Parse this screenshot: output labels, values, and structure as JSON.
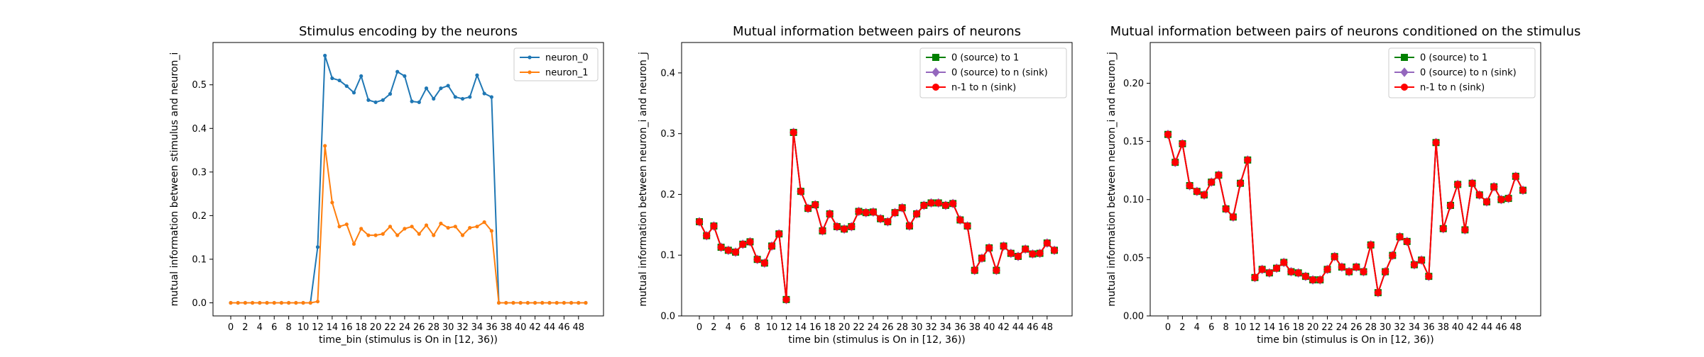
{
  "chart_data": [
    {
      "type": "line",
      "title": "Stimulus encoding by the neurons",
      "xlabel": "time_bin (stimulus is On in [12, 36))",
      "ylabel": "mutual information between stimulus and neuron_i",
      "xlim": [
        -2.45,
        51.45
      ],
      "ylim": [
        -0.03,
        0.597
      ],
      "xticks": [
        0,
        2,
        4,
        6,
        8,
        10,
        12,
        14,
        16,
        18,
        20,
        22,
        24,
        26,
        28,
        30,
        32,
        34,
        36,
        38,
        40,
        42,
        44,
        46,
        48
      ],
      "xtick_labels": [
        "0",
        "2",
        "4",
        "6",
        "8",
        "10",
        "12",
        "14",
        "16",
        "18",
        "20",
        "22",
        "24",
        "26",
        "28",
        "30",
        "32",
        "34",
        "36",
        "38",
        "40",
        "42",
        "44",
        "46",
        "48"
      ],
      "yticks": [
        0.0,
        0.1,
        0.2,
        0.3,
        0.4,
        0.5
      ],
      "ytick_labels": [
        "0.0",
        "0.1",
        "0.2",
        "0.3",
        "0.4",
        "0.5"
      ],
      "legend_position": "upper-right",
      "x": [
        0,
        1,
        2,
        3,
        4,
        5,
        6,
        7,
        8,
        9,
        10,
        11,
        12,
        13,
        14,
        15,
        16,
        17,
        18,
        19,
        20,
        21,
        22,
        23,
        24,
        25,
        26,
        27,
        28,
        29,
        30,
        31,
        32,
        33,
        34,
        35,
        36,
        37,
        38,
        39,
        40,
        41,
        42,
        43,
        44,
        45,
        46,
        47,
        48,
        49
      ],
      "series": [
        {
          "name": "neuron_0",
          "color": "#1f77b4",
          "marker": "circle",
          "values": [
            0,
            0,
            0,
            0,
            0,
            0,
            0,
            0,
            0,
            0,
            0,
            0,
            0.128,
            0.567,
            0.515,
            0.51,
            0.497,
            0.482,
            0.52,
            0.465,
            0.46,
            0.465,
            0.479,
            0.53,
            0.52,
            0.462,
            0.46,
            0.492,
            0.468,
            0.492,
            0.498,
            0.472,
            0.468,
            0.472,
            0.522,
            0.48,
            0.472,
            0,
            0,
            0,
            0,
            0,
            0,
            0,
            0,
            0,
            0,
            0,
            0,
            0
          ]
        },
        {
          "name": "neuron_1",
          "color": "#ff7f0e",
          "marker": "circle",
          "values": [
            0,
            0,
            0,
            0,
            0,
            0,
            0,
            0,
            0,
            0,
            0,
            0,
            0.003,
            0.36,
            0.23,
            0.175,
            0.18,
            0.135,
            0.17,
            0.155,
            0.155,
            0.158,
            0.175,
            0.155,
            0.17,
            0.175,
            0.158,
            0.178,
            0.155,
            0.182,
            0.172,
            0.175,
            0.155,
            0.172,
            0.175,
            0.185,
            0.165,
            0,
            0,
            0,
            0,
            0,
            0,
            0,
            0,
            0,
            0,
            0,
            0,
            0
          ]
        }
      ]
    },
    {
      "type": "line",
      "title": "Mutual information between pairs of neurons",
      "xlabel": "time bin (stimulus is On in [12, 36))",
      "ylabel": "mutual information between neuron_i and neuron_j",
      "xlim": [
        -2.45,
        51.45
      ],
      "ylim": [
        0.0,
        0.45
      ],
      "xticks": [
        0,
        2,
        4,
        6,
        8,
        10,
        12,
        14,
        16,
        18,
        20,
        22,
        24,
        26,
        28,
        30,
        32,
        34,
        36,
        38,
        40,
        42,
        44,
        46,
        48
      ],
      "xtick_labels": [
        "0",
        "2",
        "4",
        "6",
        "8",
        "10",
        "12",
        "14",
        "16",
        "18",
        "20",
        "22",
        "24",
        "26",
        "28",
        "30",
        "32",
        "34",
        "36",
        "38",
        "40",
        "42",
        "44",
        "46",
        "48"
      ],
      "yticks": [
        0.0,
        0.1,
        0.2,
        0.3,
        0.4
      ],
      "ytick_labels": [
        "0.0",
        "0.1",
        "0.2",
        "0.3",
        "0.4"
      ],
      "legend_position": "upper-right",
      "x": [
        0,
        1,
        2,
        3,
        4,
        5,
        6,
        7,
        8,
        9,
        10,
        11,
        12,
        13,
        14,
        15,
        16,
        17,
        18,
        19,
        20,
        21,
        22,
        23,
        24,
        25,
        26,
        27,
        28,
        29,
        30,
        31,
        32,
        33,
        34,
        35,
        36,
        37,
        38,
        39,
        40,
        41,
        42,
        43,
        44,
        45,
        46,
        47,
        48,
        49
      ],
      "series": [
        {
          "name": "0 (source) to 1",
          "color": "#008000",
          "marker": "square",
          "values": [
            0.155,
            0.132,
            0.148,
            0.113,
            0.108,
            0.105,
            0.118,
            0.122,
            0.093,
            0.087,
            0.115,
            0.135,
            0.027,
            0.302,
            0.205,
            0.177,
            0.183,
            0.14,
            0.168,
            0.147,
            0.143,
            0.147,
            0.172,
            0.17,
            0.171,
            0.16,
            0.155,
            0.17,
            0.178,
            0.148,
            0.168,
            0.182,
            0.186,
            0.186,
            0.182,
            0.185,
            0.158,
            0.148,
            0.075,
            0.095,
            0.112,
            0.075,
            0.115,
            0.103,
            0.098,
            0.11,
            0.102,
            0.103,
            0.12,
            0.108
          ]
        },
        {
          "name": "0 (source) to n (sink)",
          "color": "#9467bd",
          "marker": "diamond",
          "values": [
            0.155,
            0.132,
            0.148,
            0.113,
            0.108,
            0.105,
            0.118,
            0.122,
            0.093,
            0.087,
            0.115,
            0.135,
            0.027,
            0.302,
            0.205,
            0.177,
            0.183,
            0.14,
            0.168,
            0.147,
            0.143,
            0.147,
            0.172,
            0.17,
            0.171,
            0.16,
            0.155,
            0.17,
            0.178,
            0.148,
            0.168,
            0.182,
            0.186,
            0.186,
            0.182,
            0.185,
            0.158,
            0.148,
            0.075,
            0.095,
            0.112,
            0.075,
            0.115,
            0.103,
            0.098,
            0.11,
            0.102,
            0.103,
            0.12,
            0.108
          ]
        },
        {
          "name": "n-1 to n (sink)",
          "color": "#ff0000",
          "marker": "circle",
          "values": [
            0.155,
            0.132,
            0.148,
            0.113,
            0.108,
            0.105,
            0.118,
            0.122,
            0.093,
            0.087,
            0.115,
            0.135,
            0.027,
            0.302,
            0.205,
            0.177,
            0.183,
            0.14,
            0.168,
            0.147,
            0.143,
            0.147,
            0.172,
            0.17,
            0.171,
            0.16,
            0.155,
            0.17,
            0.178,
            0.148,
            0.168,
            0.182,
            0.186,
            0.186,
            0.182,
            0.185,
            0.158,
            0.148,
            0.075,
            0.095,
            0.112,
            0.075,
            0.115,
            0.103,
            0.098,
            0.11,
            0.102,
            0.103,
            0.12,
            0.108
          ]
        }
      ]
    },
    {
      "type": "line",
      "title": "Mutual information between pairs of neurons conditioned on the stimulus",
      "xlabel": "time bin (stimulus is On in [12, 36))",
      "ylabel": "mutual information between neuron_i and neuron_j",
      "xlim": [
        -2.45,
        51.45
      ],
      "ylim": [
        0.0,
        0.235
      ],
      "xticks": [
        0,
        2,
        4,
        6,
        8,
        10,
        12,
        14,
        16,
        18,
        20,
        22,
        24,
        26,
        28,
        30,
        32,
        34,
        36,
        38,
        40,
        42,
        44,
        46,
        48
      ],
      "xtick_labels": [
        "0",
        "2",
        "4",
        "6",
        "8",
        "10",
        "12",
        "14",
        "16",
        "18",
        "20",
        "22",
        "24",
        "26",
        "28",
        "30",
        "32",
        "34",
        "36",
        "38",
        "40",
        "42",
        "44",
        "46",
        "48"
      ],
      "yticks": [
        0.0,
        0.05,
        0.1,
        0.15,
        0.2
      ],
      "ytick_labels": [
        "0.00",
        "0.05",
        "0.10",
        "0.15",
        "0.20"
      ],
      "legend_position": "upper-right",
      "x": [
        0,
        1,
        2,
        3,
        4,
        5,
        6,
        7,
        8,
        9,
        10,
        11,
        12,
        13,
        14,
        15,
        16,
        17,
        18,
        19,
        20,
        21,
        22,
        23,
        24,
        25,
        26,
        27,
        28,
        29,
        30,
        31,
        32,
        33,
        34,
        35,
        36,
        37,
        38,
        39,
        40,
        41,
        42,
        43,
        44,
        45,
        46,
        47,
        48,
        49
      ],
      "series": [
        {
          "name": "0 (source) to 1",
          "color": "#008000",
          "marker": "square",
          "values": [
            0.156,
            0.132,
            0.148,
            0.112,
            0.107,
            0.104,
            0.115,
            0.121,
            0.092,
            0.085,
            0.114,
            0.134,
            0.033,
            0.04,
            0.037,
            0.041,
            0.046,
            0.038,
            0.037,
            0.034,
            0.031,
            0.031,
            0.04,
            0.051,
            0.042,
            0.038,
            0.042,
            0.038,
            0.061,
            0.02,
            0.038,
            0.052,
            0.068,
            0.064,
            0.044,
            0.048,
            0.034,
            0.149,
            0.075,
            0.095,
            0.113,
            0.074,
            0.114,
            0.104,
            0.098,
            0.111,
            0.1,
            0.101,
            0.12,
            0.108
          ]
        },
        {
          "name": "0 (source) to n (sink)",
          "color": "#9467bd",
          "marker": "diamond",
          "values": [
            0.156,
            0.132,
            0.148,
            0.112,
            0.107,
            0.104,
            0.115,
            0.121,
            0.092,
            0.085,
            0.114,
            0.134,
            0.033,
            0.04,
            0.037,
            0.041,
            0.046,
            0.038,
            0.037,
            0.034,
            0.031,
            0.031,
            0.04,
            0.051,
            0.042,
            0.038,
            0.042,
            0.038,
            0.061,
            0.02,
            0.038,
            0.052,
            0.068,
            0.064,
            0.044,
            0.048,
            0.034,
            0.149,
            0.075,
            0.095,
            0.113,
            0.074,
            0.114,
            0.104,
            0.098,
            0.111,
            0.1,
            0.101,
            0.12,
            0.108
          ]
        },
        {
          "name": "n-1 to n (sink)",
          "color": "#ff0000",
          "marker": "circle",
          "values": [
            0.156,
            0.132,
            0.148,
            0.112,
            0.107,
            0.104,
            0.115,
            0.121,
            0.092,
            0.085,
            0.114,
            0.134,
            0.033,
            0.04,
            0.037,
            0.041,
            0.046,
            0.038,
            0.037,
            0.034,
            0.031,
            0.031,
            0.04,
            0.051,
            0.042,
            0.038,
            0.042,
            0.038,
            0.061,
            0.02,
            0.038,
            0.052,
            0.068,
            0.064,
            0.044,
            0.048,
            0.034,
            0.149,
            0.075,
            0.095,
            0.113,
            0.074,
            0.114,
            0.104,
            0.098,
            0.111,
            0.1,
            0.101,
            0.12,
            0.108
          ]
        }
      ]
    }
  ]
}
